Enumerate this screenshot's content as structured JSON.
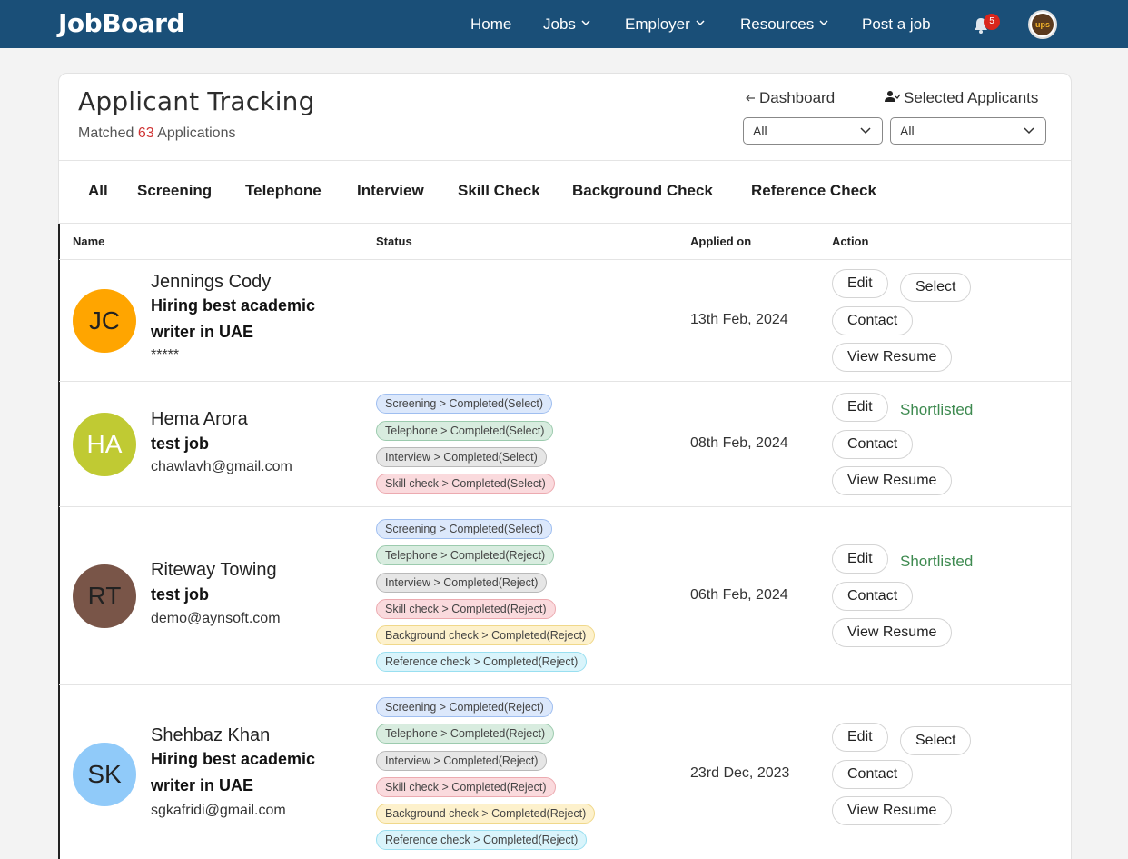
{
  "nav": {
    "logo": "JobBoard",
    "home": "Home",
    "jobs": "Jobs",
    "employer": "Employer",
    "resources": "Resources",
    "post_job": "Post a job",
    "notif_count": "5",
    "avatar_text": "ups"
  },
  "header": {
    "title": "Applicant Tracking",
    "matched_prefix": "Matched",
    "matched_count": "63",
    "matched_suffix": "Applications",
    "dashboard_link": "Dashboard",
    "selected_link": "Selected Applicants",
    "filter1": "All",
    "filter2": "All"
  },
  "tabs": [
    "All",
    "Screening",
    "Telephone",
    "Interview",
    "Skill Check",
    "Background Check",
    "Reference Check"
  ],
  "table": {
    "headers": {
      "name": "Name",
      "status": "Status",
      "applied": "Applied on",
      "action": "Action"
    },
    "actions": {
      "edit": "Edit",
      "select": "Select",
      "contact": "Contact",
      "view_resume": "View Resume",
      "shortlisted": "Shortlisted"
    },
    "rows": [
      {
        "initials": "JC",
        "avatar_color": "#ffa500",
        "name": "Jennings Cody",
        "job": "Hiring best academic writer in UAE",
        "email": "*****",
        "date": "13th Feb, 2024",
        "statuses": [],
        "action_state": "select"
      },
      {
        "initials": "HA",
        "avatar_color": "#c0ca33",
        "name": "Hema Arora",
        "job": "test job",
        "email": "chawlavh@gmail.com",
        "date": "08th Feb, 2024",
        "statuses": [
          "Screening > Completed(Select)",
          "Telephone > Completed(Select)",
          "Interview > Completed(Select)",
          "Skill check > Completed(Select)"
        ],
        "action_state": "shortlisted"
      },
      {
        "initials": "RT",
        "avatar_color": "#795548",
        "name": "Riteway Towing",
        "job": "test job",
        "email": "demo@aynsoft.com",
        "date": "06th Feb, 2024",
        "statuses": [
          "Screening > Completed(Select)",
          "Telephone > Completed(Reject)",
          "Interview > Completed(Reject)",
          "Skill check > Completed(Reject)",
          "Background check > Completed(Reject)",
          "Reference check > Completed(Reject)"
        ],
        "action_state": "shortlisted"
      },
      {
        "initials": "SK",
        "avatar_color": "#90caf9",
        "name": "Shehbaz Khan",
        "job": "Hiring best academic writer in UAE",
        "email": "sgkafridi@gmail.com",
        "date": "23rd Dec, 2023",
        "statuses": [
          "Screening > Completed(Reject)",
          "Telephone > Completed(Reject)",
          "Interview > Completed(Reject)",
          "Skill check > Completed(Reject)",
          "Background check > Completed(Reject)",
          "Reference check > Completed(Reject)"
        ],
        "action_state": "select"
      }
    ]
  }
}
